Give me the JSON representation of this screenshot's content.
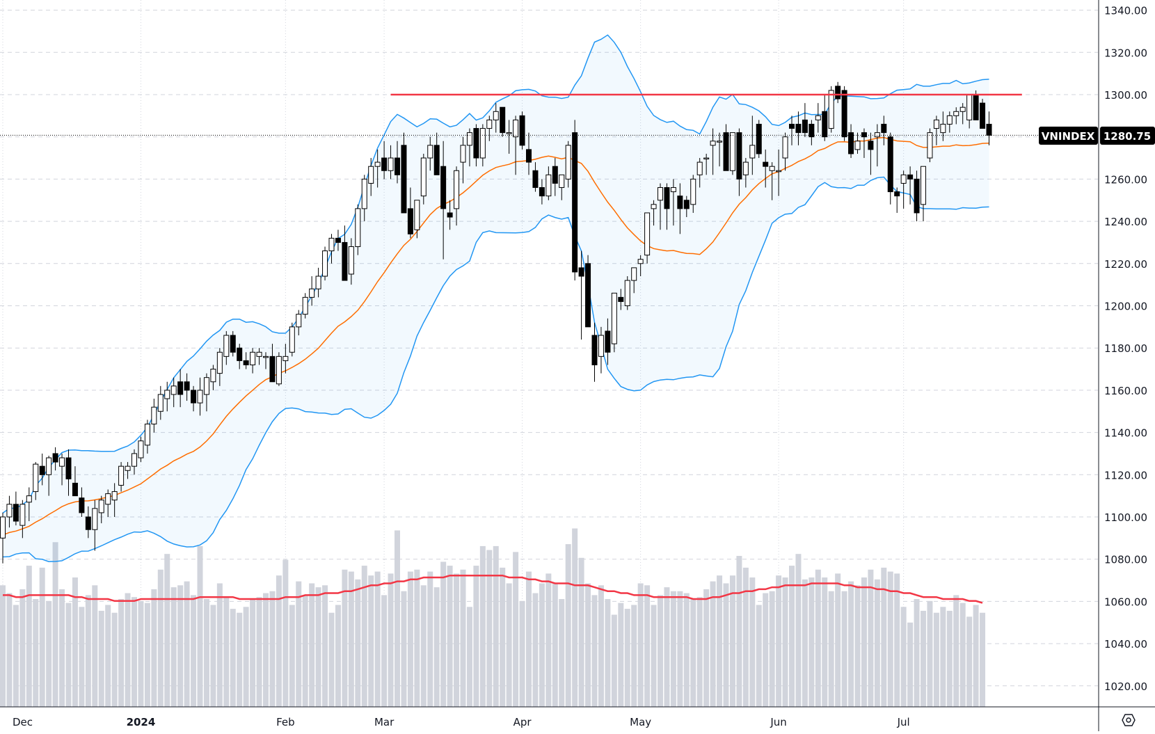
{
  "chart_data": {
    "type": "candlestick",
    "symbol": "VNINDEX",
    "last_price": "1280.75",
    "title": "",
    "xlabel": "",
    "ylabel": "",
    "ylim": [
      1010,
      1344
    ],
    "y_ticks": [
      "1340.00",
      "1320.00",
      "1300.00",
      "1280.00",
      "1260.00",
      "1240.00",
      "1220.00",
      "1200.00",
      "1180.00",
      "1160.00",
      "1140.00",
      "1120.00",
      "1100.00",
      "1080.00",
      "1060.00",
      "1040.00",
      "1020.00"
    ],
    "x_tick_labels": [
      {
        "label": "Dec",
        "index": 0
      },
      {
        "label": "2024",
        "index": 21
      },
      {
        "label": "Feb",
        "index": 43
      },
      {
        "label": "Mar",
        "index": 58
      },
      {
        "label": "Apr",
        "index": 79
      },
      {
        "label": "May",
        "index": 97
      },
      {
        "label": "Jun",
        "index": 118
      },
      {
        "label": "Jul",
        "index": 137
      }
    ],
    "grid": true,
    "resistance_line": {
      "price": 1300,
      "from_index": 59,
      "to_index": 155,
      "color": "#f23645"
    },
    "indicators": {
      "bollinger": {
        "period": 20,
        "upper_color": "#2196f3",
        "lower_color": "#2196f3",
        "basis_color": "#ff6d00",
        "fill": "#2196f3"
      },
      "volume_ma_color": "#f23645",
      "volume_color": "#d1d4dc"
    },
    "colors": {
      "up_body": "#ffffff",
      "down_body": "#000000",
      "wick": "#000000",
      "grid": "#d1d4dc",
      "axis": "#131722"
    },
    "candles": [
      [
        1090,
        1102,
        1078,
        1100
      ],
      [
        1100,
        1110,
        1095,
        1106
      ],
      [
        1106,
        1112,
        1096,
        1098
      ],
      [
        1096,
        1108,
        1090,
        1106
      ],
      [
        1107,
        1114,
        1098,
        1110
      ],
      [
        1112,
        1126,
        1108,
        1125
      ],
      [
        1124,
        1130,
        1115,
        1120
      ],
      [
        1120,
        1129,
        1110,
        1128
      ],
      [
        1130,
        1133,
        1122,
        1126
      ],
      [
        1124,
        1130,
        1115,
        1128
      ],
      [
        1128,
        1132,
        1110,
        1118
      ],
      [
        1116,
        1124,
        1112,
        1110
      ],
      [
        1109,
        1114,
        1100,
        1102
      ],
      [
        1100,
        1105,
        1090,
        1094
      ],
      [
        1094,
        1108,
        1084,
        1104
      ],
      [
        1102,
        1110,
        1097,
        1108
      ],
      [
        1106,
        1113,
        1100,
        1111
      ],
      [
        1108,
        1116,
        1100,
        1112
      ],
      [
        1115,
        1126,
        1112,
        1124
      ],
      [
        1122,
        1126,
        1118,
        1124
      ],
      [
        1124,
        1132,
        1120,
        1130
      ],
      [
        1128,
        1138,
        1126,
        1136
      ],
      [
        1134,
        1146,
        1130,
        1144
      ],
      [
        1144,
        1156,
        1140,
        1152
      ],
      [
        1150,
        1162,
        1146,
        1158
      ],
      [
        1156,
        1164,
        1150,
        1160
      ],
      [
        1158,
        1166,
        1152,
        1162
      ],
      [
        1164,
        1170,
        1152,
        1158
      ],
      [
        1164,
        1168,
        1155,
        1160
      ],
      [
        1160,
        1162,
        1150,
        1154
      ],
      [
        1154,
        1166,
        1148,
        1160
      ],
      [
        1158,
        1168,
        1150,
        1166
      ],
      [
        1164,
        1172,
        1160,
        1170
      ],
      [
        1168,
        1180,
        1162,
        1178
      ],
      [
        1176,
        1188,
        1172,
        1186
      ],
      [
        1186,
        1188,
        1176,
        1178
      ],
      [
        1180,
        1182,
        1170,
        1174
      ],
      [
        1174,
        1178,
        1170,
        1172
      ],
      [
        1172,
        1180,
        1168,
        1178
      ],
      [
        1176,
        1180,
        1172,
        1178
      ],
      [
        1176,
        1178,
        1170,
        1176
      ],
      [
        1176,
        1182,
        1164,
        1164
      ],
      [
        1163,
        1178,
        1162,
        1176
      ],
      [
        1174,
        1182,
        1168,
        1176
      ],
      [
        1178,
        1192,
        1176,
        1190
      ],
      [
        1190,
        1198,
        1186,
        1196
      ],
      [
        1196,
        1206,
        1194,
        1204
      ],
      [
        1204,
        1214,
        1200,
        1208
      ],
      [
        1208,
        1218,
        1204,
        1214
      ],
      [
        1214,
        1228,
        1212,
        1226
      ],
      [
        1226,
        1234,
        1220,
        1232
      ],
      [
        1232,
        1236,
        1226,
        1230
      ],
      [
        1230,
        1238,
        1212,
        1212
      ],
      [
        1215,
        1232,
        1210,
        1228
      ],
      [
        1228,
        1248,
        1224,
        1246
      ],
      [
        1246,
        1262,
        1240,
        1260
      ],
      [
        1258,
        1270,
        1252,
        1266
      ],
      [
        1266,
        1274,
        1256,
        1268
      ],
      [
        1270,
        1278,
        1260,
        1264
      ],
      [
        1264,
        1276,
        1260,
        1270
      ],
      [
        1270,
        1278,
        1258,
        1262
      ],
      [
        1276,
        1282,
        1248,
        1244
      ],
      [
        1246,
        1256,
        1232,
        1234
      ],
      [
        1236,
        1250,
        1232,
        1250
      ],
      [
        1252,
        1272,
        1248,
        1270
      ],
      [
        1270,
        1280,
        1264,
        1276
      ],
      [
        1276,
        1282,
        1262,
        1262
      ],
      [
        1266,
        1278,
        1222,
        1246
      ],
      [
        1244,
        1250,
        1236,
        1242
      ],
      [
        1246,
        1266,
        1238,
        1264
      ],
      [
        1268,
        1280,
        1258,
        1276
      ],
      [
        1276,
        1284,
        1266,
        1282
      ],
      [
        1284,
        1286,
        1266,
        1270
      ],
      [
        1270,
        1286,
        1266,
        1284
      ],
      [
        1284,
        1290,
        1278,
        1288
      ],
      [
        1288,
        1296,
        1282,
        1292
      ],
      [
        1294,
        1294,
        1280,
        1282
      ],
      [
        1282,
        1288,
        1272,
        1282
      ],
      [
        1280,
        1290,
        1262,
        1288
      ],
      [
        1290,
        1292,
        1274,
        1276
      ],
      [
        1274,
        1282,
        1262,
        1268
      ],
      [
        1264,
        1268,
        1254,
        1256
      ],
      [
        1256,
        1260,
        1248,
        1252
      ],
      [
        1252,
        1266,
        1250,
        1262
      ],
      [
        1266,
        1270,
        1252,
        1258
      ],
      [
        1256,
        1262,
        1250,
        1262
      ],
      [
        1260,
        1278,
        1256,
        1276
      ],
      [
        1282,
        1288,
        1212,
        1216
      ],
      [
        1218,
        1226,
        1184,
        1214
      ],
      [
        1220,
        1224,
        1190,
        1190
      ],
      [
        1186,
        1192,
        1164,
        1172
      ],
      [
        1176,
        1190,
        1168,
        1186
      ],
      [
        1188,
        1194,
        1172,
        1178
      ],
      [
        1182,
        1206,
        1178,
        1206
      ],
      [
        1204,
        1208,
        1198,
        1202
      ],
      [
        1200,
        1214,
        1198,
        1212
      ],
      [
        1212,
        1218,
        1206,
        1218
      ],
      [
        1220,
        1224,
        1214,
        1222
      ],
      [
        1224,
        1244,
        1220,
        1244
      ],
      [
        1246,
        1250,
        1238,
        1248
      ],
      [
        1250,
        1258,
        1236,
        1256
      ],
      [
        1256,
        1258,
        1236,
        1246
      ],
      [
        1254,
        1260,
        1238,
        1256
      ],
      [
        1252,
        1258,
        1234,
        1246
      ],
      [
        1250,
        1252,
        1242,
        1246
      ],
      [
        1248,
        1262,
        1244,
        1260
      ],
      [
        1262,
        1270,
        1256,
        1268
      ],
      [
        1270,
        1272,
        1262,
        1270
      ],
      [
        1276,
        1284,
        1262,
        1278
      ],
      [
        1278,
        1282,
        1266,
        1278
      ],
      [
        1282,
        1286,
        1264,
        1264
      ],
      [
        1264,
        1282,
        1262,
        1282
      ],
      [
        1282,
        1284,
        1252,
        1260
      ],
      [
        1262,
        1270,
        1256,
        1268
      ],
      [
        1270,
        1290,
        1262,
        1276
      ],
      [
        1286,
        1288,
        1270,
        1272
      ],
      [
        1268,
        1274,
        1256,
        1266
      ],
      [
        1264,
        1268,
        1250,
        1266
      ],
      [
        1264,
        1274,
        1252,
        1264
      ],
      [
        1270,
        1282,
        1264,
        1280
      ],
      [
        1286,
        1290,
        1276,
        1284
      ],
      [
        1286,
        1292,
        1276,
        1282
      ],
      [
        1288,
        1296,
        1280,
        1282
      ],
      [
        1286,
        1288,
        1276,
        1280
      ],
      [
        1288,
        1296,
        1282,
        1290
      ],
      [
        1292,
        1300,
        1278,
        1280
      ],
      [
        1284,
        1304,
        1282,
        1302
      ],
      [
        1304,
        1306,
        1296,
        1298
      ],
      [
        1302,
        1304,
        1278,
        1280
      ],
      [
        1282,
        1286,
        1270,
        1272
      ],
      [
        1274,
        1282,
        1272,
        1278
      ],
      [
        1282,
        1284,
        1270,
        1280
      ],
      [
        1278,
        1282,
        1262,
        1274
      ],
      [
        1280,
        1286,
        1266,
        1282
      ],
      [
        1286,
        1290,
        1276,
        1282
      ],
      [
        1280,
        1282,
        1248,
        1254
      ],
      [
        1254,
        1256,
        1244,
        1252
      ],
      [
        1258,
        1264,
        1246,
        1262
      ],
      [
        1262,
        1266,
        1248,
        1260
      ],
      [
        1260,
        1264,
        1240,
        1244
      ],
      [
        1248,
        1264,
        1240,
        1266
      ],
      [
        1270,
        1284,
        1268,
        1282
      ],
      [
        1284,
        1290,
        1276,
        1288
      ],
      [
        1282,
        1292,
        1278,
        1286
      ],
      [
        1286,
        1292,
        1282,
        1290
      ],
      [
        1290,
        1294,
        1286,
        1292
      ],
      [
        1292,
        1296,
        1286,
        1294
      ],
      [
        1288,
        1300,
        1284,
        1300
      ],
      [
        1300,
        1302,
        1288,
        1288
      ],
      [
        1296,
        1298,
        1284,
        1284
      ],
      [
        1286,
        1292,
        1276,
        1280.75
      ]
    ],
    "volumes": [
      62,
      58,
      52,
      60,
      72,
      55,
      71,
      54,
      84,
      60,
      53,
      66,
      51,
      57,
      62,
      49,
      52,
      48,
      55,
      58,
      56,
      54,
      53,
      60,
      70,
      78,
      61,
      62,
      64,
      57,
      82,
      55,
      52,
      63,
      56,
      50,
      48,
      51,
      55,
      56,
      58,
      59,
      67,
      75,
      52,
      64,
      57,
      63,
      61,
      62,
      48,
      52,
      70,
      69,
      65,
      72,
      67,
      69,
      57,
      68,
      90,
      59,
      69,
      70,
      62,
      69,
      61,
      74,
      72,
      68,
      70,
      51,
      72,
      82,
      80,
      82,
      71,
      63,
      79,
      54,
      69,
      58,
      63,
      68,
      63,
      55,
      83,
      91,
      76,
      63,
      57,
      62,
      55,
      47,
      53,
      50,
      52,
      63,
      62,
      52,
      57,
      61,
      59,
      59,
      58,
      55,
      56,
      60,
      64,
      67,
      63,
      67,
      77,
      71,
      66,
      52,
      58,
      59,
      67,
      66,
      72,
      78,
      65,
      66,
      70,
      66,
      59,
      68,
      59,
      64,
      62,
      66,
      70,
      65,
      71,
      69,
      68,
      51,
      43,
      55,
      49,
      54,
      48,
      51,
      49,
      57,
      53,
      46,
      52,
      48
    ],
    "volume_ma": [
      57,
      57,
      56,
      56,
      57,
      57,
      57,
      57,
      57,
      57,
      57,
      56,
      56,
      55,
      55,
      55,
      55,
      54,
      54,
      54,
      54,
      55,
      55,
      55,
      55,
      55,
      55,
      55,
      55,
      55,
      56,
      56,
      56,
      56,
      56,
      56,
      55,
      55,
      55,
      55,
      55,
      55,
      55,
      56,
      56,
      56,
      57,
      57,
      57,
      58,
      58,
      58,
      59,
      59,
      60,
      61,
      62,
      62,
      63,
      63,
      64,
      64,
      65,
      65,
      66,
      66,
      66,
      66,
      67,
      67,
      67,
      67,
      67,
      67,
      67,
      67,
      67,
      66,
      66,
      66,
      65,
      65,
      64,
      64,
      63,
      63,
      63,
      62,
      62,
      62,
      61,
      60,
      59,
      59,
      58,
      58,
      57,
      57,
      57,
      56,
      56,
      56,
      56,
      56,
      56,
      55,
      55,
      55,
      56,
      56,
      57,
      58,
      58,
      59,
      59,
      60,
      60,
      61,
      61,
      62,
      62,
      62,
      62,
      63,
      63,
      63,
      63,
      63,
      62,
      62,
      61,
      61,
      61,
      60,
      60,
      59,
      59,
      58,
      58,
      57,
      56,
      56,
      56,
      55,
      55,
      55,
      55,
      54,
      54,
      53
    ],
    "volume_ylim": [
      0,
      110
    ]
  },
  "axis": {
    "settings_icon": "hexagon-settings-icon"
  }
}
